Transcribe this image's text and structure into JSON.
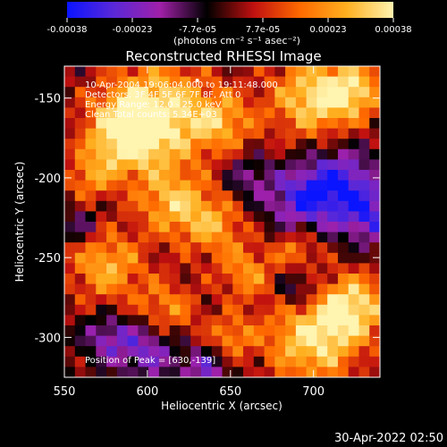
{
  "chart_data": {
    "type": "heatmap",
    "title": "Reconstructed RHESSI Image",
    "xlabel": "Heliocentric X (arcsec)",
    "ylabel": "Heliocentric Y (arcsec)",
    "xlim": [
      550,
      740
    ],
    "ylim": [
      -325,
      -130
    ],
    "x_ticks": [
      550,
      600,
      650,
      700
    ],
    "y_ticks": [
      -150,
      -200,
      -250,
      -300
    ],
    "colorbar": {
      "ticks": [
        "-0.00038",
        "-0.00023",
        "-7.7e-05",
        "7.7e-05",
        "0.00023",
        "0.00038"
      ],
      "range": [
        -0.00038,
        0.00038
      ],
      "unit_label": "(photons cm⁻² s⁻¹ asec⁻²)",
      "colors": [
        "#0a14ff",
        "#5a28d8",
        "#a020a8",
        "#000000",
        "#c01010",
        "#ff6a00",
        "#ffb020",
        "#fff4b0"
      ]
    },
    "annotations": [
      "10-Apr-2004 19:06:04.000 to 19:11:48.000",
      "Detectors: 3F 4F 5F 6F 7F 8F, Att 0",
      "Energy Range: 12.0 - 25.0 keV",
      "Clean     Total counts: 5.34E+03"
    ],
    "peak_label": "Position of Peak = [630,-139]",
    "peak": {
      "x": 630,
      "y": -139
    },
    "grid": "30 x 30 pixel grid, bright structure upper-left and lower-right, faint blue patches on right"
  },
  "footer": {
    "date": "30-Apr-2022 02:50"
  }
}
